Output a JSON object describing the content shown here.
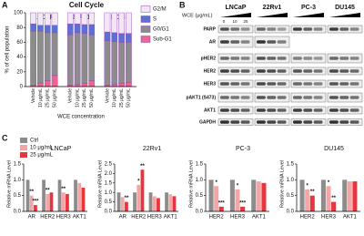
{
  "panel_labels": [
    "A",
    "B",
    "C"
  ],
  "chart_data": [
    {
      "type": "bar",
      "stacked": true,
      "title": "Cell Cycle",
      "y_label": "% of cell population",
      "x_label": "WCE concentration",
      "x_label_color": "#e8343c",
      "groups": [
        "LNCaP",
        "22Rv1",
        "PC-3"
      ],
      "categories": [
        "Vehicle",
        "10 μg/mL",
        "25 μg/mL",
        "50 μg/mL",
        "Vehicle",
        "10 μg/mL",
        "25 μg/mL",
        "50 μg/mL",
        "Vehicle",
        "10 μg/mL",
        "25 μg/mL",
        "50 μg/mL"
      ],
      "edgecolor": "#8e44ad",
      "legend_position": "right",
      "series": [
        {
          "name": "Sub-G1",
          "color": "#f06292",
          "values": [
            2,
            5,
            8,
            15,
            2,
            3,
            4,
            8,
            2,
            3,
            4,
            6
          ]
        },
        {
          "name": "G0/G1",
          "color": "#8c8c8c",
          "values": [
            73,
            70,
            65,
            58,
            68,
            70,
            68,
            62,
            60,
            58,
            56,
            54
          ]
        },
        {
          "name": "S",
          "color": "#5b6fd6",
          "values": [
            10,
            8,
            10,
            10,
            15,
            12,
            12,
            14,
            12,
            12,
            12,
            12
          ]
        },
        {
          "name": "G2/M",
          "color": "#f3e6f7",
          "values": [
            15,
            17,
            17,
            17,
            15,
            15,
            16,
            16,
            26,
            27,
            28,
            28
          ]
        }
      ],
      "ylim": [
        0,
        100
      ],
      "yticks": [
        0,
        20,
        40,
        60,
        80,
        100
      ]
    },
    {
      "type": "bar",
      "title": "LNCaP",
      "y_label": "Relative mRNA Level",
      "legend": true,
      "legend_position": "top-left",
      "categories": [
        "AR",
        "HER2",
        "HER3",
        "AKT1"
      ],
      "series": [
        {
          "name": "Ctrl",
          "color": "#8c8c8c",
          "values": [
            1,
            1,
            1,
            1
          ]
        },
        {
          "name": "10 μg/mL",
          "color": "#f4a6a6",
          "values": [
            0.5,
            0.55,
            0.6,
            0.9
          ],
          "annotations": [
            "**",
            "**",
            "**",
            null
          ]
        },
        {
          "name": "25 μg/mL",
          "color": "#e8343c",
          "values": [
            0.2,
            0.6,
            0.55,
            0.75
          ],
          "annotations": [
            "***",
            null,
            null,
            null
          ]
        }
      ],
      "ylim": [
        0,
        1.5
      ],
      "yticks": [
        {
          "value": 0,
          "label": "0.0"
        },
        0.5,
        {
          "value": 1,
          "label": "1.0"
        },
        1.5
      ]
    },
    {
      "type": "bar",
      "title": "22Rv1",
      "y_label": "Relative mRNA Level",
      "categories": [
        "AR",
        "HER2",
        "HER3",
        "AKT1"
      ],
      "series": [
        {
          "name": "Ctrl",
          "color": "#8c8c8c",
          "values": [
            1,
            1,
            1,
            1
          ]
        },
        {
          "name": "10 μg/mL",
          "color": "#f4a6a6",
          "values": [
            0.75,
            1.4,
            0.8,
            0.9
          ],
          "annotations": [
            null,
            "*",
            null,
            null
          ]
        },
        {
          "name": "25 μg/mL",
          "color": "#e8343c",
          "values": [
            0.5,
            2.2,
            0.7,
            0.8
          ],
          "annotations": [
            "**",
            "**",
            null,
            null
          ]
        }
      ],
      "ylim": [
        0,
        2.5
      ],
      "yticks": [
        {
          "value": 0,
          "label": "0.0"
        },
        0.5,
        {
          "value": 1,
          "label": "1.0"
        },
        1.5,
        {
          "value": 2,
          "label": "2.0"
        },
        2.5
      ]
    },
    {
      "type": "bar",
      "title": "PC-3",
      "y_label": "Relative mRNA Level",
      "categories": [
        "HER2",
        "HER3",
        "AKT1"
      ],
      "series": [
        {
          "name": "Ctrl",
          "color": "#8c8c8c",
          "values": [
            1,
            1,
            1
          ]
        },
        {
          "name": "10 μg/mL",
          "color": "#f4a6a6",
          "values": [
            0.8,
            0.7,
            0.95
          ],
          "annotations": [
            "*",
            "*",
            null
          ]
        },
        {
          "name": "25 μg/mL",
          "color": "#e8343c",
          "values": [
            0.15,
            0.15,
            0.9
          ],
          "annotations": [
            "***",
            "***",
            null
          ]
        }
      ],
      "ylim": [
        0,
        1.5
      ],
      "yticks": [
        {
          "value": 0,
          "label": "0.0"
        },
        0.5,
        {
          "value": 1,
          "label": "1.0"
        },
        1.5
      ]
    },
    {
      "type": "bar",
      "title": "DU145",
      "y_label": "Relative mRNA Level",
      "categories": [
        "HER2",
        "HER3",
        "AKT1"
      ],
      "series": [
        {
          "name": "Ctrl",
          "color": "#8c8c8c",
          "values": [
            1,
            1,
            1
          ]
        },
        {
          "name": "10 μg/mL",
          "color": "#f4a6a6",
          "values": [
            0.7,
            0.8,
            0.95
          ],
          "annotations": [
            "*",
            "*",
            null
          ]
        },
        {
          "name": "25 μg/mL",
          "color": "#e8343c",
          "values": [
            0.5,
            0.3,
            0.95
          ],
          "annotations": [
            "**",
            "**",
            null
          ]
        }
      ],
      "ylim": [
        0,
        1.5
      ],
      "yticks": [
        {
          "value": 0,
          "label": "0.0"
        },
        0.5,
        {
          "value": 1,
          "label": "1.0"
        },
        1.5
      ]
    }
  ],
  "blot": {
    "header": "WCE (μg/mL)",
    "doses": [
      "0",
      "10",
      "25"
    ],
    "cell_lines": [
      "LNCaP",
      "22Rv1",
      "PC-3",
      "DU145"
    ],
    "proteins": [
      "PARP",
      "AR",
      "pHER2",
      "HER2",
      "HER3",
      "pAKT1 (S473)",
      "AKT1",
      "GAPDH"
    ]
  }
}
